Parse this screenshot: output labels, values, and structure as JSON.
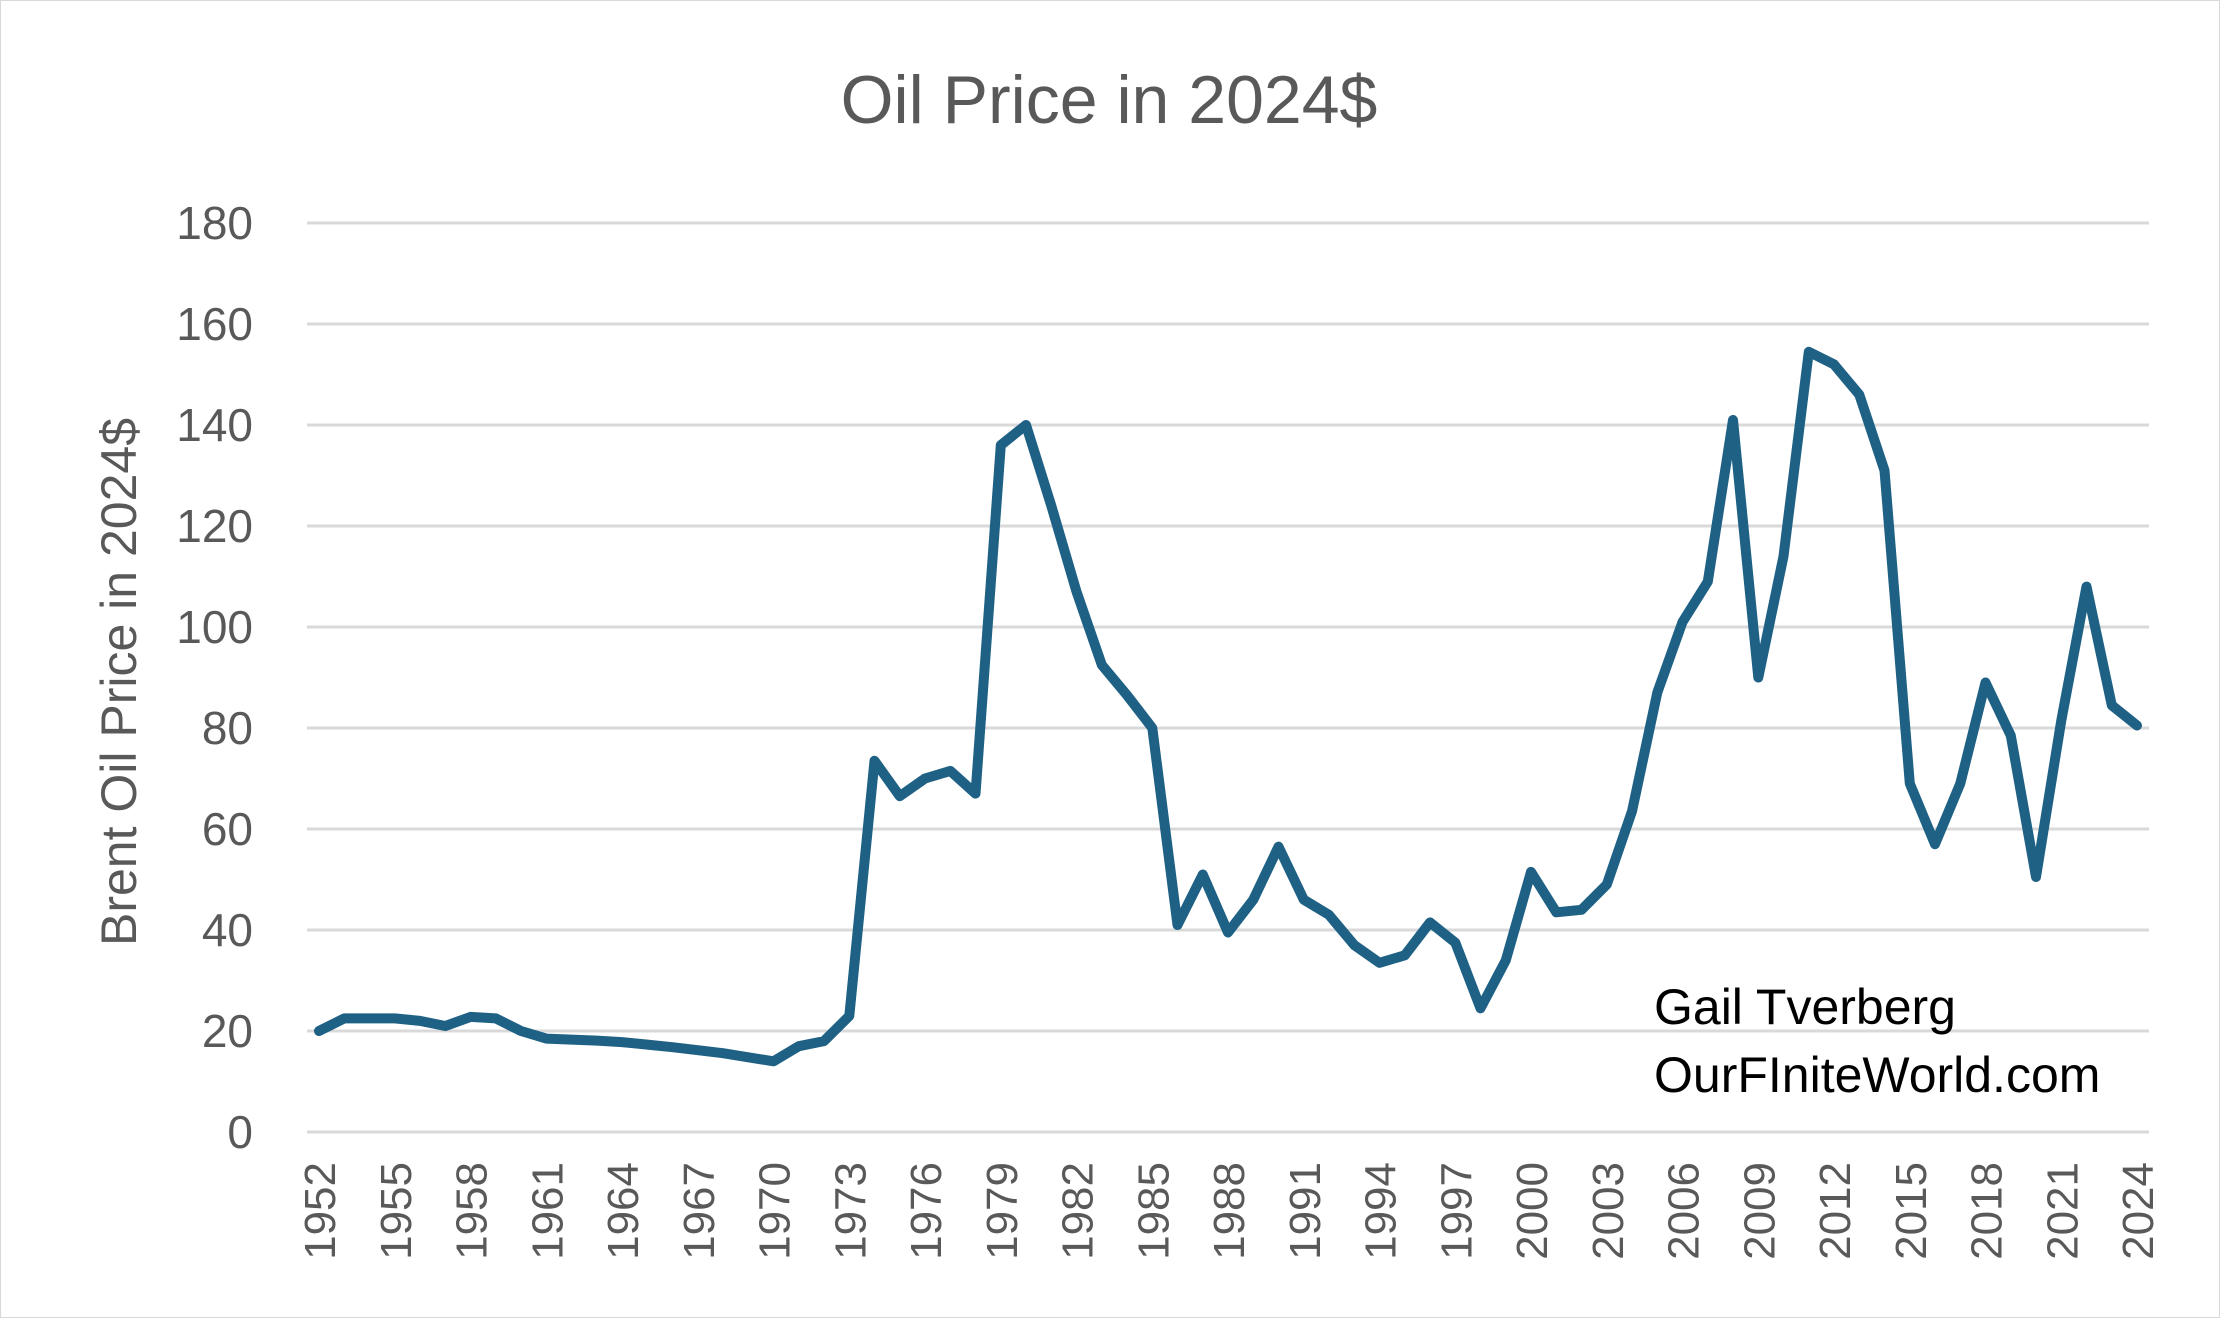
{
  "chart_data": {
    "type": "line",
    "title": "Oil Price in 2024$",
    "xlabel": "",
    "ylabel": "Brent Oil Price in 2024$",
    "ylim": [
      0,
      180
    ],
    "yticks": [
      0,
      20,
      40,
      60,
      80,
      100,
      120,
      140,
      160,
      180
    ],
    "xtick_labels": [
      "1952",
      "1955",
      "1958",
      "1961",
      "1964",
      "1967",
      "1970",
      "1973",
      "1976",
      "1979",
      "1982",
      "1985",
      "1988",
      "1991",
      "1994",
      "1997",
      "2000",
      "2003",
      "2006",
      "2009",
      "2012",
      "2015",
      "2018",
      "2021",
      "2024"
    ],
    "grid": true,
    "legend": "none",
    "line_color": "#1f6185",
    "annotations": [
      "Gail Tverberg",
      "OurFIniteWorld.com"
    ],
    "series": [
      {
        "x": [
          1952,
          1953,
          1954,
          1955,
          1956,
          1957,
          1958,
          1959,
          1960,
          1961,
          1962,
          1963,
          1964,
          1965,
          1966,
          1967,
          1968,
          1969,
          1970,
          1971,
          1972,
          1973,
          1974,
          1975,
          1976,
          1977,
          1978,
          1979,
          1980,
          1981,
          1982,
          1983,
          1984,
          1985,
          1986,
          1987,
          1988,
          1989,
          1990,
          1991,
          1992,
          1993,
          1994,
          1995,
          1996,
          1997,
          1998,
          1999,
          2000,
          2001,
          2002,
          2003,
          2004,
          2005,
          2006,
          2007,
          2008,
          2009,
          2010,
          2011,
          2012,
          2013,
          2014,
          2015,
          2016,
          2017,
          2018,
          2019,
          2020,
          2021,
          2022,
          2023,
          2024
        ],
        "values": [
          20,
          22.5,
          22.5,
          22.5,
          22,
          21,
          22.8,
          22.5,
          20,
          18.5,
          18.3,
          18.1,
          17.8,
          17.3,
          16.8,
          16.2,
          15.6,
          14.8,
          14,
          17,
          18,
          23,
          73.5,
          66.5,
          70,
          71.5,
          67,
          136,
          140,
          124,
          107,
          92.5,
          86.5,
          80,
          41,
          51,
          39.5,
          46,
          56.5,
          46,
          43,
          37,
          33.5,
          35,
          41.5,
          37.5,
          24.5,
          34,
          51.5,
          43.5,
          44,
          49,
          63.5,
          87,
          101,
          109,
          141,
          90,
          114,
          154.5,
          152,
          146,
          131,
          69,
          57,
          69,
          89,
          78.5,
          50.5,
          81.5,
          108,
          84.5,
          80.5
        ]
      }
    ]
  }
}
